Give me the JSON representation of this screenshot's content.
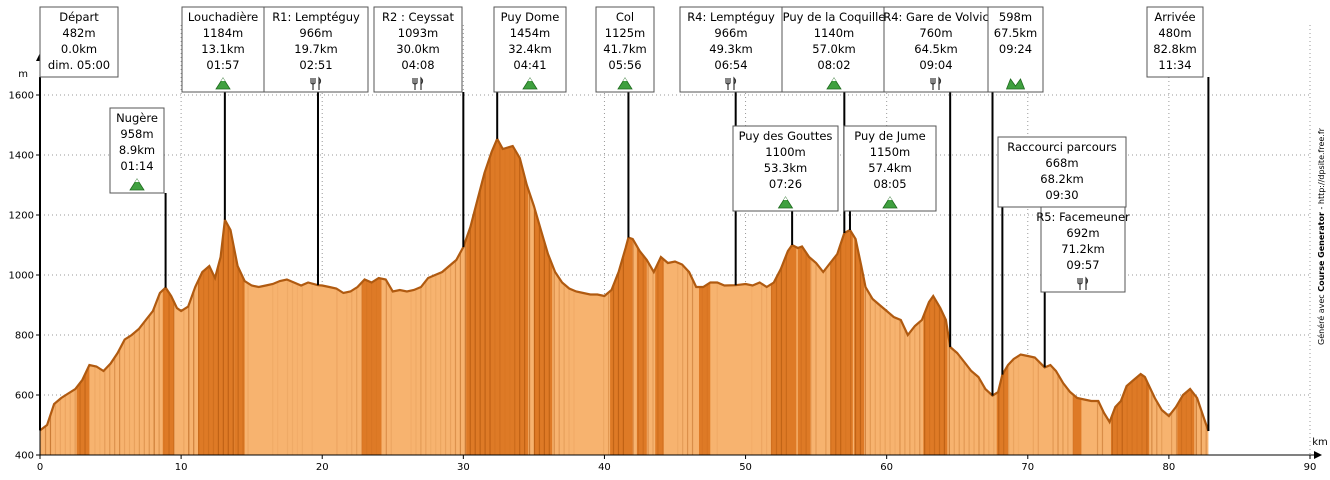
{
  "chart_data": {
    "type": "area",
    "title": "",
    "xlabel": "km",
    "ylabel": "m",
    "xlim": [
      0,
      90
    ],
    "ylim": [
      400,
      1700
    ],
    "grid": true,
    "x_ticks": [
      0,
      10,
      20,
      30,
      40,
      50,
      60,
      70,
      80,
      90
    ],
    "y_ticks": [
      400,
      600,
      800,
      1000,
      1200,
      1400,
      1600
    ],
    "colors": {
      "fill_light": "#f7b36f",
      "fill_dark": "#d9701a",
      "outline": "#b05a10",
      "summit_icon": "#3fa03f"
    },
    "profile": [
      [
        0,
        482
      ],
      [
        0.5,
        500
      ],
      [
        1,
        570
      ],
      [
        1.5,
        590
      ],
      [
        2,
        605
      ],
      [
        2.5,
        620
      ],
      [
        3,
        650
      ],
      [
        3.5,
        700
      ],
      [
        4,
        695
      ],
      [
        4.5,
        680
      ],
      [
        5,
        705
      ],
      [
        5.5,
        740
      ],
      [
        6,
        785
      ],
      [
        6.5,
        800
      ],
      [
        7,
        820
      ],
      [
        7.5,
        850
      ],
      [
        8,
        880
      ],
      [
        8.5,
        940
      ],
      [
        8.9,
        958
      ],
      [
        9.3,
        930
      ],
      [
        9.7,
        890
      ],
      [
        10,
        880
      ],
      [
        10.5,
        895
      ],
      [
        11,
        960
      ],
      [
        11.5,
        1010
      ],
      [
        12,
        1030
      ],
      [
        12.4,
        990
      ],
      [
        12.8,
        1060
      ],
      [
        13.1,
        1184
      ],
      [
        13.5,
        1150
      ],
      [
        14,
        1030
      ],
      [
        14.5,
        980
      ],
      [
        15,
        965
      ],
      [
        15.5,
        960
      ],
      [
        16,
        965
      ],
      [
        16.5,
        970
      ],
      [
        17,
        980
      ],
      [
        17.5,
        985
      ],
      [
        18,
        975
      ],
      [
        18.5,
        965
      ],
      [
        19,
        975
      ],
      [
        19.7,
        966
      ],
      [
        20,
        965
      ],
      [
        20.5,
        960
      ],
      [
        21,
        955
      ],
      [
        21.5,
        940
      ],
      [
        22,
        945
      ],
      [
        22.5,
        960
      ],
      [
        23,
        985
      ],
      [
        23.5,
        975
      ],
      [
        24,
        990
      ],
      [
        24.5,
        985
      ],
      [
        25,
        945
      ],
      [
        25.5,
        950
      ],
      [
        26,
        945
      ],
      [
        26.5,
        950
      ],
      [
        27,
        960
      ],
      [
        27.5,
        990
      ],
      [
        28,
        1000
      ],
      [
        28.5,
        1010
      ],
      [
        29,
        1030
      ],
      [
        29.5,
        1050
      ],
      [
        30,
        1093
      ],
      [
        30.5,
        1160
      ],
      [
        31,
        1250
      ],
      [
        31.5,
        1340
      ],
      [
        32,
        1410
      ],
      [
        32.4,
        1454
      ],
      [
        32.8,
        1420
      ],
      [
        33.5,
        1430
      ],
      [
        34,
        1390
      ],
      [
        34.5,
        1300
      ],
      [
        35,
        1230
      ],
      [
        35.5,
        1150
      ],
      [
        36,
        1070
      ],
      [
        36.5,
        1010
      ],
      [
        37,
        975
      ],
      [
        37.5,
        955
      ],
      [
        38,
        945
      ],
      [
        38.5,
        940
      ],
      [
        39,
        935
      ],
      [
        39.5,
        935
      ],
      [
        40,
        930
      ],
      [
        40.5,
        950
      ],
      [
        41,
        1010
      ],
      [
        41.5,
        1090
      ],
      [
        41.7,
        1125
      ],
      [
        42,
        1120
      ],
      [
        42.5,
        1080
      ],
      [
        43,
        1050
      ],
      [
        43.5,
        1010
      ],
      [
        44,
        1060
      ],
      [
        44.5,
        1040
      ],
      [
        45,
        1045
      ],
      [
        45.5,
        1035
      ],
      [
        46,
        1010
      ],
      [
        46.5,
        960
      ],
      [
        47,
        960
      ],
      [
        47.5,
        975
      ],
      [
        48,
        975
      ],
      [
        48.5,
        965
      ],
      [
        49.3,
        966
      ],
      [
        50,
        970
      ],
      [
        50.5,
        965
      ],
      [
        51,
        975
      ],
      [
        51.5,
        960
      ],
      [
        52,
        975
      ],
      [
        52.5,
        1020
      ],
      [
        53,
        1080
      ],
      [
        53.3,
        1100
      ],
      [
        53.7,
        1090
      ],
      [
        54,
        1095
      ],
      [
        54.5,
        1060
      ],
      [
        55,
        1040
      ],
      [
        55.5,
        1010
      ],
      [
        56,
        1040
      ],
      [
        56.5,
        1070
      ],
      [
        57,
        1140
      ],
      [
        57.4,
        1150
      ],
      [
        57.8,
        1120
      ],
      [
        58.2,
        1030
      ],
      [
        58.5,
        960
      ],
      [
        59,
        920
      ],
      [
        59.5,
        900
      ],
      [
        60,
        880
      ],
      [
        60.5,
        860
      ],
      [
        61,
        850
      ],
      [
        61.5,
        800
      ],
      [
        62,
        830
      ],
      [
        62.5,
        850
      ],
      [
        63,
        910
      ],
      [
        63.3,
        930
      ],
      [
        63.8,
        890
      ],
      [
        64.2,
        850
      ],
      [
        64.5,
        760
      ],
      [
        65,
        740
      ],
      [
        65.5,
        710
      ],
      [
        66,
        680
      ],
      [
        66.5,
        660
      ],
      [
        67,
        620
      ],
      [
        67.5,
        598
      ],
      [
        67.9,
        610
      ],
      [
        68.2,
        668
      ],
      [
        68.6,
        700
      ],
      [
        69,
        720
      ],
      [
        69.5,
        735
      ],
      [
        70,
        730
      ],
      [
        70.5,
        725
      ],
      [
        71.2,
        692
      ],
      [
        71.6,
        700
      ],
      [
        72,
        680
      ],
      [
        72.5,
        640
      ],
      [
        73,
        610
      ],
      [
        73.5,
        590
      ],
      [
        74,
        585
      ],
      [
        74.5,
        580
      ],
      [
        75,
        580
      ],
      [
        75.4,
        540
      ],
      [
        75.8,
        510
      ],
      [
        76.2,
        560
      ],
      [
        76.6,
        580
      ],
      [
        77,
        630
      ],
      [
        77.5,
        650
      ],
      [
        78,
        670
      ],
      [
        78.3,
        660
      ],
      [
        78.6,
        630
      ],
      [
        79,
        590
      ],
      [
        79.5,
        550
      ],
      [
        80,
        530
      ],
      [
        80.5,
        560
      ],
      [
        81,
        600
      ],
      [
        81.5,
        620
      ],
      [
        82,
        590
      ],
      [
        82.5,
        520
      ],
      [
        82.8,
        480
      ]
    ],
    "dark_segments": [
      [
        2.6,
        3.5
      ],
      [
        8.7,
        9.5
      ],
      [
        11.2,
        13.8
      ],
      [
        13.8,
        14.5
      ],
      [
        22.8,
        24.2
      ],
      [
        30.2,
        34.6
      ],
      [
        35.0,
        36.3
      ],
      [
        40.4,
        42.0
      ],
      [
        42.3,
        43.0
      ],
      [
        43.6,
        44.2
      ],
      [
        46.7,
        47.5
      ],
      [
        51.8,
        53.6
      ],
      [
        53.7,
        54.6
      ],
      [
        56.0,
        57.6
      ],
      [
        57.7,
        58.4
      ],
      [
        62.6,
        64.3
      ],
      [
        67.8,
        68.6
      ],
      [
        73.2,
        73.8
      ],
      [
        75.9,
        78.6
      ],
      [
        80.6,
        81.8
      ]
    ],
    "markers": [
      {
        "label": "Départ",
        "elev": "482m",
        "dist": "0.0km",
        "time": "dim. 05:00",
        "x": 0,
        "y": 482,
        "icon": ""
      },
      {
        "label": "Nugère",
        "elev": "958m",
        "dist": "8.9km",
        "time": "01:14",
        "x": 8.9,
        "y": 958,
        "icon": "summit"
      },
      {
        "label": "Louchadière",
        "elev": "1184m",
        "dist": "13.1km",
        "time": "01:57",
        "x": 13.1,
        "y": 1184,
        "icon": "summit"
      },
      {
        "label": "R1: Lemptéguy",
        "elev": "966m",
        "dist": "19.7km",
        "time": "02:51",
        "x": 19.7,
        "y": 966,
        "icon": "food"
      },
      {
        "label": "R2 : Ceyssat",
        "elev": "1093m",
        "dist": "30.0km",
        "time": "04:08",
        "x": 30.0,
        "y": 1093,
        "icon": "food"
      },
      {
        "label": "Puy Dome",
        "elev": "1454m",
        "dist": "32.4km",
        "time": "04:41",
        "x": 32.4,
        "y": 1454,
        "icon": "summit"
      },
      {
        "label": "Col",
        "elev": "1125m",
        "dist": "41.7km",
        "time": "05:56",
        "x": 41.7,
        "y": 1125,
        "icon": "summit"
      },
      {
        "label": "R4: Lemptéguy",
        "elev": "966m",
        "dist": "49.3km",
        "time": "06:54",
        "x": 49.3,
        "y": 966,
        "icon": "food"
      },
      {
        "label": "Puy des Gouttes",
        "elev": "1100m",
        "dist": "53.3km",
        "time": "07:26",
        "x": 53.3,
        "y": 1100,
        "icon": "summit"
      },
      {
        "label": "Puy de la Coquille",
        "elev": "1140m",
        "dist": "57.0km",
        "time": "08:02",
        "x": 57.0,
        "y": 1140,
        "icon": "summit"
      },
      {
        "label": "Puy de Jume",
        "elev": "1150m",
        "dist": "57.4km",
        "time": "08:05",
        "x": 57.4,
        "y": 1150,
        "icon": "summit"
      },
      {
        "label": "R4: Gare de Volvic",
        "elev": "760m",
        "dist": "64.5km",
        "time": "09:04",
        "x": 64.5,
        "y": 760,
        "icon": "food"
      },
      {
        "label": "",
        "elev": "598m",
        "dist": "67.5km",
        "time": "09:24",
        "x": 67.5,
        "y": 598,
        "icon": "col"
      },
      {
        "label": "Raccourci parcours",
        "elev": "668m",
        "dist": "68.2km",
        "time": "09:30",
        "x": 68.2,
        "y": 668,
        "icon": ""
      },
      {
        "label": "R5: Facemeuner",
        "elev": "692m",
        "dist": "71.2km",
        "time": "09:57",
        "x": 71.2,
        "y": 692,
        "icon": "food"
      },
      {
        "label": "Arrivée",
        "elev": "480m",
        "dist": "82.8km",
        "time": "11:34",
        "x": 82.8,
        "y": 480,
        "icon": ""
      }
    ]
  },
  "credit": {
    "prefix": "Généré avec ",
    "brand": "Course Generator",
    "suffix": " - http://dpsite.free.fr"
  }
}
